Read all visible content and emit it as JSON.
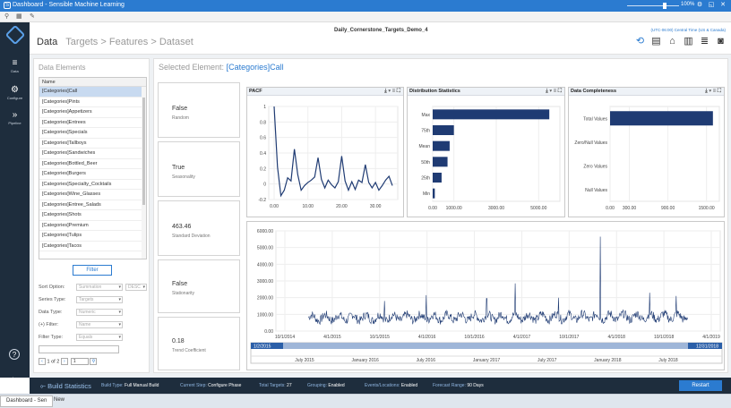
{
  "window": {
    "title": "Dashboard - Sensible Machine Learning",
    "zoom": "100%"
  },
  "sidebar": [
    {
      "label": "Data",
      "glyph": "≡"
    },
    {
      "label": "Configure",
      "glyph": "⚙"
    },
    {
      "label": "Pipeline",
      "glyph": "»"
    }
  ],
  "header": {
    "dataset": "Daily_Cornerstone_Targets_Demo_4",
    "timezone": "(UTC-06:00) Central Time (US & Canada)",
    "breadcrumb": [
      "Data",
      "Targets",
      "Features",
      "Dataset"
    ],
    "sep": ">"
  },
  "left": {
    "title": "Data Elements",
    "column": "Name",
    "items": [
      "[Categories]Call",
      "[Categories]Pints",
      "[Categories]Appetizers",
      "[Categories]Entrees",
      "[Categories]Specials",
      "[Categories]Tallboys",
      "[Categories]Sandwiches",
      "[Categories]Bottled_Beer",
      "[Categories]Burgers",
      "[Categories]Specialty_Cocktails",
      "[Categories]Wine_Glasses",
      "[Categories]Entree_Salads",
      "[Categories]Shots",
      "[Categories]Premium",
      "[Categories]Tulips",
      "[Categories]Tacos"
    ],
    "filter_button": "Filter",
    "sort_label": "Sort Option:",
    "sort_value": "Summation",
    "sort_dir": "DESC",
    "series_label": "Series Type:",
    "series_value": "Targets",
    "dtype_label": "Data Type:",
    "dtype_value": "Numeric",
    "plus_label": "(+) Filter:",
    "plus_value": "Name",
    "ftype_label": "Filter Type:",
    "ftype_value": "Equals",
    "pager_text": "1 of 2",
    "page_input": "1"
  },
  "right": {
    "label": "Selected Element:",
    "element": "[Categories]Call",
    "cards": [
      {
        "value": "False",
        "label": "Random"
      },
      {
        "value": "True",
        "label": "Seasonality"
      },
      {
        "value": "463.46",
        "label": "Standard Deviation"
      },
      {
        "value": "False",
        "label": "Stationarity"
      },
      {
        "value": "0.18",
        "label": "Trend Coefficient"
      }
    ],
    "panel_icons": "⤓ ▾ ≡ ⛶"
  },
  "chart_data": [
    {
      "type": "line",
      "title": "PACF",
      "x": [
        0,
        1,
        2,
        3,
        4,
        5,
        6,
        7,
        8,
        9,
        10,
        11,
        12,
        13,
        14,
        15,
        16,
        17,
        18,
        19,
        20,
        21,
        22,
        23,
        24,
        25,
        26,
        27,
        28,
        29,
        30,
        31,
        32,
        33,
        34,
        35
      ],
      "values": [
        1.0,
        0.22,
        -0.15,
        -0.08,
        0.08,
        0.04,
        0.45,
        0.12,
        -0.08,
        -0.02,
        0.02,
        0.05,
        0.09,
        0.34,
        0.06,
        -0.05,
        0.05,
        -0.01,
        -0.05,
        0.03,
        0.36,
        0.04,
        -0.08,
        0.03,
        -0.07,
        0.05,
        0.02,
        0.25,
        0.02,
        -0.05,
        0.02,
        -0.08,
        -0.02,
        0.05,
        0.1,
        -0.02
      ],
      "xticks": [
        "0.00",
        "10.00",
        "20.00",
        "30.00"
      ],
      "yticks": [
        "1",
        "0.8",
        "0.6",
        "0.4",
        "0.2",
        "0",
        "-0.2"
      ],
      "ylim": [
        -0.2,
        1.0
      ]
    },
    {
      "type": "bar",
      "orientation": "horizontal",
      "title": "Distribution Statistics",
      "categories": [
        "Max",
        "75th",
        "Mean",
        "50th",
        "25th",
        "Min"
      ],
      "values": [
        5500,
        1000,
        800,
        700,
        420,
        100
      ],
      "xticks": [
        "0.00",
        "1000.00",
        "3000.00",
        "5000.00"
      ],
      "xlim": [
        0,
        6000
      ]
    },
    {
      "type": "bar",
      "orientation": "horizontal",
      "title": "Data Completeness",
      "categories": [
        "Total Values",
        "Zero/Null Values",
        "Zero Values",
        "Null Values"
      ],
      "values": [
        1600,
        0,
        0,
        0
      ],
      "xticks": [
        "0.00",
        "300.00",
        "900.00",
        "1500.00"
      ],
      "xlim": [
        0,
        1700
      ]
    },
    {
      "type": "line",
      "title": "",
      "yticks": [
        "6000.00",
        "5000.00",
        "4000.00",
        "3000.00",
        "2000.00",
        "1000.00",
        "0.00"
      ],
      "ylim": [
        0,
        6000
      ],
      "xticks": [
        "10/1/2014",
        "4/1/2015",
        "10/1/2015",
        "4/1/2016",
        "10/1/2016",
        "4/1/2017",
        "10/1/2017",
        "4/1/2018",
        "10/1/2018",
        "4/1/2019"
      ],
      "range_start": "1/2/2015",
      "range_end": "12/31/2018",
      "range_ticks": [
        "July 2015",
        "January 2016",
        "July 2016",
        "January 2017",
        "July 2017",
        "January 2018",
        "July 2018"
      ],
      "peaks": [
        {
          "x": "2/2018",
          "value": 5650
        },
        {
          "x": "9/2017",
          "value": 2850
        },
        {
          "x": "12/2016",
          "value": 2150
        },
        {
          "x": "8/2018",
          "value": 2300
        }
      ]
    }
  ],
  "status": {
    "title": "Build Statistics",
    "items": [
      {
        "k": "Build Type:",
        "v": "Full Manual Build"
      },
      {
        "k": "Current Step:",
        "v": "Configure Phase"
      },
      {
        "k": "Total Targets:",
        "v": "27"
      },
      {
        "k": "Grouping:",
        "v": "Enabled"
      },
      {
        "k": "Events/Locations:",
        "v": "Enabled"
      },
      {
        "k": "Forecast Range:",
        "v": "90 Days"
      }
    ],
    "button": "Restart"
  },
  "taskbar": {
    "tab": "Dashboard - Sen",
    "new": "New"
  }
}
